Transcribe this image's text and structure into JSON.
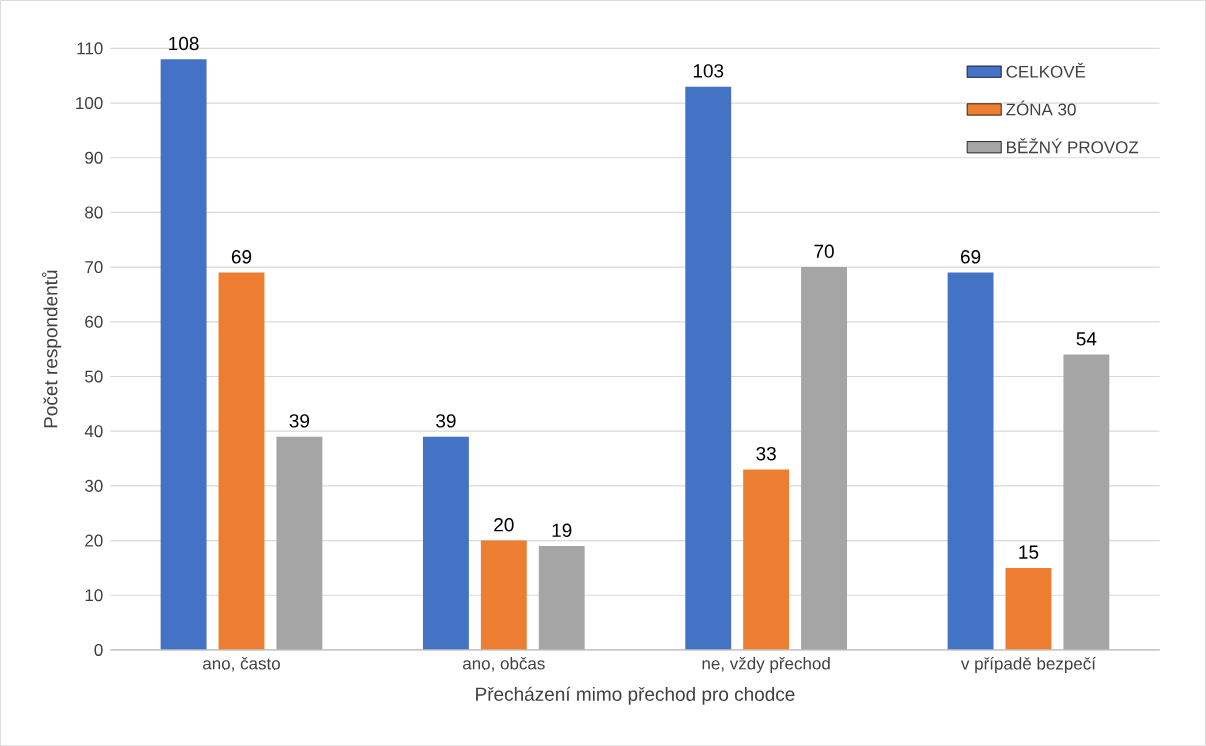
{
  "chart_data": {
    "type": "bar",
    "xlabel": "Přecházení mimo přechod pro chodce",
    "ylabel": "Počet respondentů",
    "categories": [
      "ano, často",
      "ano, občas",
      "ne, vždy přechod",
      "v případě bezpečí"
    ],
    "series": [
      {
        "name": "CELKOVĚ",
        "color": "#4472c4",
        "values": [
          108,
          39,
          103,
          69
        ]
      },
      {
        "name": "ZÓNA 30",
        "color": "#ed7d31",
        "values": [
          69,
          20,
          33,
          15
        ]
      },
      {
        "name": "BĚŽNÝ PROVOZ",
        "color": "#a5a5a5",
        "values": [
          39,
          19,
          70,
          54
        ]
      }
    ],
    "ylim": [
      0,
      110
    ],
    "yticks": [
      0,
      10,
      20,
      30,
      40,
      50,
      60,
      70,
      80,
      90,
      100,
      110
    ],
    "grid": "y",
    "legend": "top right",
    "data_labels": true
  }
}
